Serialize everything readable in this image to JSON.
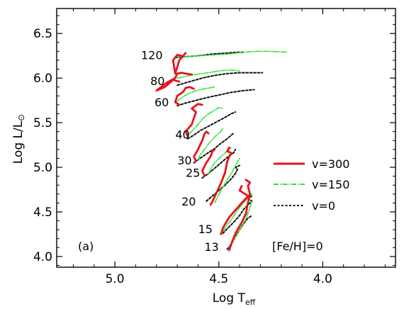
{
  "chart_data": {
    "type": "line",
    "panel_label": "(a)",
    "metallicity_label": "[Fe/H]=0",
    "xlabel": "Log T",
    "xlabel_sub": "eff",
    "ylabel": "Log L/L",
    "ylabel_symbol": "⊙",
    "xlim": [
      5.28,
      3.65
    ],
    "ylim": [
      3.88,
      6.78
    ],
    "x_ticks": [
      5.0,
      4.5,
      4.0
    ],
    "x_tick_labels": [
      "5.0",
      "4.5",
      "4.0"
    ],
    "y_ticks": [
      4.0,
      4.5,
      5.0,
      5.5,
      6.0,
      6.5
    ],
    "y_tick_labels": [
      "4.0",
      "4.5",
      "5.0",
      "5.5",
      "6.0",
      "6.5"
    ],
    "grid": false,
    "legend_position": "right",
    "legend": [
      {
        "label": "v=300",
        "color": "#e8131c",
        "style": "solid"
      },
      {
        "label": "v=150",
        "color": "#36e036",
        "style": "dashdot"
      },
      {
        "label": "v=0",
        "color": "#111111",
        "style": "dotted"
      }
    ],
    "mass_labels": [
      {
        "text": "120",
        "x": 4.77,
        "y": 6.26
      },
      {
        "text": "80",
        "x": 4.76,
        "y": 5.97
      },
      {
        "text": "60",
        "x": 4.74,
        "y": 5.73
      },
      {
        "text": "40",
        "x": 4.64,
        "y": 5.37
      },
      {
        "text": "30",
        "x": 4.63,
        "y": 5.08
      },
      {
        "text": "25",
        "x": 4.59,
        "y": 4.94
      },
      {
        "text": "20",
        "x": 4.61,
        "y": 4.62
      },
      {
        "text": "15",
        "x": 4.53,
        "y": 4.31
      },
      {
        "text": "13",
        "x": 4.5,
        "y": 4.11
      }
    ],
    "series": [
      {
        "name": "v=300",
        "mass": "120",
        "color": "#e8131c",
        "style": "solid",
        "x": [
          4.68,
          4.7,
          4.72,
          4.71,
          4.69,
          4.66
        ],
        "y": [
          6.25,
          6.26,
          6.2,
          6.05,
          6.2,
          6.28
        ]
      },
      {
        "name": "v=300",
        "mass": "80",
        "color": "#e8131c",
        "style": "solid",
        "x": [
          4.69,
          4.72,
          4.76,
          4.8,
          4.75,
          4.71,
          4.7,
          4.68,
          4.66,
          4.63
        ],
        "y": [
          5.96,
          5.98,
          5.9,
          5.86,
          5.95,
          6.0,
          6.05,
          6.06,
          6.05,
          6.04
        ]
      },
      {
        "name": "v=300",
        "mass": "60",
        "color": "#e8131c",
        "style": "solid",
        "x": [
          4.69,
          4.71,
          4.7,
          4.67,
          4.66,
          4.64,
          4.62
        ],
        "y": [
          5.7,
          5.73,
          5.8,
          5.85,
          5.89,
          5.9,
          5.88
        ]
      },
      {
        "name": "v=300",
        "mass": "40",
        "color": "#e8131c",
        "style": "solid",
        "x": [
          4.65,
          4.66,
          4.63,
          4.62,
          4.61,
          4.63,
          4.6,
          4.58
        ],
        "y": [
          5.35,
          5.4,
          5.48,
          5.55,
          5.62,
          5.66,
          5.71,
          5.7
        ]
      },
      {
        "name": "v=300",
        "mass": "30",
        "color": "#e8131c",
        "style": "solid",
        "x": [
          4.61,
          4.62,
          4.6,
          4.58,
          4.57,
          4.56,
          4.55
        ],
        "y": [
          5.07,
          5.12,
          5.2,
          5.3,
          5.37,
          5.4,
          5.38
        ]
      },
      {
        "name": "v=300",
        "mass": "25",
        "color": "#e8131c",
        "style": "solid",
        "x": [
          4.57,
          4.58,
          4.56,
          4.54,
          4.53,
          4.52
        ],
        "y": [
          4.91,
          4.96,
          5.05,
          5.12,
          5.18,
          5.2
        ]
      },
      {
        "name": "v=300",
        "mass": "20",
        "color": "#e8131c",
        "style": "solid",
        "x": [
          4.54,
          4.53,
          4.51,
          4.49,
          4.47,
          4.46,
          4.45,
          4.44,
          4.46,
          4.45
        ],
        "y": [
          4.58,
          4.62,
          4.72,
          4.82,
          4.94,
          5.06,
          5.12,
          5.16,
          5.18,
          5.22
        ]
      },
      {
        "name": "v=300",
        "mass": "15",
        "color": "#e8131c",
        "style": "solid",
        "x": [
          4.49,
          4.48,
          4.45,
          4.42,
          4.39,
          4.37,
          4.36,
          4.38,
          4.4,
          4.39
        ],
        "y": [
          4.25,
          4.32,
          4.44,
          4.52,
          4.6,
          4.65,
          4.68,
          4.71,
          4.74,
          4.79
        ]
      },
      {
        "name": "v=300",
        "mass": "13",
        "color": "#e8131c",
        "style": "solid",
        "x": [
          4.45,
          4.44,
          4.42,
          4.39,
          4.37,
          4.36,
          4.35,
          4.36,
          4.35,
          4.37
        ],
        "y": [
          4.07,
          4.14,
          4.26,
          4.38,
          4.48,
          4.6,
          4.7,
          4.79,
          4.83,
          4.86
        ]
      },
      {
        "name": "v=150",
        "mass": "120",
        "color": "#36e036",
        "style": "dashdot",
        "x": [
          4.71,
          4.66,
          4.6,
          4.52,
          4.45,
          4.38,
          4.32,
          4.25,
          4.17
        ],
        "y": [
          6.24,
          6.24,
          6.25,
          6.26,
          6.27,
          6.29,
          6.3,
          6.3,
          6.29
        ]
      },
      {
        "name": "v=150",
        "mass": "80",
        "color": "#36e036",
        "style": "dashdot",
        "x": [
          4.7,
          4.66,
          4.61,
          4.55,
          4.5,
          4.45,
          4.4
        ],
        "y": [
          6.0,
          6.02,
          6.04,
          6.06,
          6.08,
          6.09,
          6.08
        ]
      },
      {
        "name": "v=150",
        "mass": "60",
        "color": "#36e036",
        "style": "dashdot",
        "x": [
          4.7,
          4.68,
          4.65,
          4.61,
          4.57,
          4.52
        ],
        "y": [
          5.74,
          5.78,
          5.82,
          5.86,
          5.88,
          5.9
        ]
      },
      {
        "name": "v=150",
        "mass": "40",
        "color": "#36e036",
        "style": "dashdot",
        "x": [
          4.64,
          4.62,
          4.6,
          4.58,
          4.55,
          4.52,
          4.5,
          4.48
        ],
        "y": [
          5.38,
          5.43,
          5.48,
          5.54,
          5.6,
          5.64,
          5.67,
          5.66
        ]
      },
      {
        "name": "v=150",
        "mass": "30",
        "color": "#36e036",
        "style": "dashdot",
        "x": [
          4.6,
          4.59,
          4.57,
          4.55,
          4.52,
          4.49,
          4.48
        ],
        "y": [
          5.08,
          5.14,
          5.2,
          5.26,
          5.34,
          5.4,
          5.44
        ]
      },
      {
        "name": "v=150",
        "mass": "25",
        "color": "#36e036",
        "style": "dashdot",
        "x": [
          4.55,
          4.54,
          4.52,
          4.49,
          4.46,
          4.44
        ],
        "y": [
          4.92,
          4.98,
          5.05,
          5.12,
          5.18,
          5.22
        ]
      },
      {
        "name": "v=150",
        "mass": "20",
        "color": "#36e036",
        "style": "dashdot",
        "x": [
          4.52,
          4.51,
          4.49,
          4.46,
          4.43,
          4.41,
          4.4
        ],
        "y": [
          4.6,
          4.65,
          4.74,
          4.86,
          4.97,
          5.06,
          5.1
        ]
      },
      {
        "name": "v=150",
        "mass": "15",
        "color": "#36e036",
        "style": "dashdot",
        "x": [
          4.48,
          4.46,
          4.43,
          4.4,
          4.37,
          4.35,
          4.34
        ],
        "y": [
          4.28,
          4.35,
          4.45,
          4.55,
          4.63,
          4.68,
          4.7
        ]
      },
      {
        "name": "v=150",
        "mass": "13",
        "color": "#36e036",
        "style": "dashdot",
        "x": [
          4.45,
          4.43,
          4.4,
          4.37,
          4.35,
          4.34
        ],
        "y": [
          4.1,
          4.18,
          4.3,
          4.42,
          4.55,
          4.62
        ]
      },
      {
        "name": "v=0",
        "mass": "120",
        "color": "#111111",
        "style": "dotted",
        "x": [
          4.71,
          4.66,
          4.6,
          4.53,
          4.46,
          4.41,
          4.38
        ],
        "y": [
          6.23,
          6.24,
          6.25,
          6.27,
          6.28,
          6.29,
          6.29
        ]
      },
      {
        "name": "v=0",
        "mass": "80",
        "color": "#111111",
        "style": "dotted",
        "x": [
          4.7,
          4.64,
          4.58,
          4.52,
          4.46,
          4.4,
          4.33,
          4.29
        ],
        "y": [
          5.92,
          5.96,
          6.0,
          6.03,
          6.05,
          6.06,
          6.06,
          6.06
        ]
      },
      {
        "name": "v=0",
        "mass": "60",
        "color": "#111111",
        "style": "dotted",
        "x": [
          4.7,
          4.66,
          4.61,
          4.56,
          4.5,
          4.44,
          4.38,
          4.33
        ],
        "y": [
          5.69,
          5.72,
          5.75,
          5.78,
          5.81,
          5.84,
          5.86,
          5.87
        ]
      },
      {
        "name": "v=0",
        "mass": "40",
        "color": "#111111",
        "style": "dotted",
        "x": [
          4.65,
          4.62,
          4.59,
          4.55,
          4.51,
          4.47,
          4.44,
          4.42
        ],
        "y": [
          5.32,
          5.36,
          5.41,
          5.46,
          5.51,
          5.56,
          5.6,
          5.62
        ]
      },
      {
        "name": "v=0",
        "mass": "30",
        "color": "#111111",
        "style": "dotted",
        "x": [
          4.62,
          4.59,
          4.56,
          4.52,
          4.49,
          4.46,
          4.44,
          4.43
        ],
        "y": [
          5.05,
          5.1,
          5.15,
          5.21,
          5.27,
          5.32,
          5.36,
          5.38
        ]
      },
      {
        "name": "v=0",
        "mass": "25",
        "color": "#111111",
        "style": "dotted",
        "x": [
          4.58,
          4.55,
          4.52,
          4.49,
          4.46,
          4.43,
          4.42
        ],
        "y": [
          4.88,
          4.93,
          4.99,
          5.05,
          5.11,
          5.16,
          5.2
        ]
      },
      {
        "name": "v=0",
        "mass": "20",
        "color": "#111111",
        "style": "dotted",
        "x": [
          4.56,
          4.53,
          4.5,
          4.47,
          4.44,
          4.42,
          4.41,
          4.42,
          4.4
        ],
        "y": [
          4.62,
          4.68,
          4.74,
          4.8,
          4.87,
          4.93,
          4.98,
          5.0,
          5.02
        ]
      },
      {
        "name": "v=0",
        "mass": "15",
        "color": "#111111",
        "style": "dotted",
        "x": [
          4.48,
          4.46,
          4.43,
          4.4,
          4.38,
          4.36,
          4.34,
          4.36,
          4.34
        ],
        "y": [
          4.26,
          4.31,
          4.38,
          4.46,
          4.53,
          4.58,
          4.62,
          4.65,
          4.68
        ]
      },
      {
        "name": "v=0",
        "mass": "13",
        "color": "#111111",
        "style": "dotted",
        "x": [
          4.46,
          4.44,
          4.42,
          4.4,
          4.38,
          4.36,
          4.34
        ],
        "y": [
          4.08,
          4.14,
          4.22,
          4.3,
          4.37,
          4.43,
          4.46
        ]
      }
    ]
  }
}
